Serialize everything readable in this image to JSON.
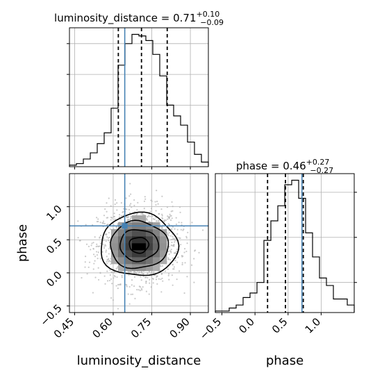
{
  "colors": {
    "truth": "#4682b4",
    "hist": "#000000",
    "grid": "#b0b0b0",
    "density_dark": "#000000",
    "points": "#b8b8b8"
  },
  "chart_data": [
    {
      "type": "histogram",
      "panel": "luminosity_distance",
      "title_param": "luminosity_distance",
      "title_value": "0.71",
      "title_plus": "+0.10",
      "title_minus": "−0.09",
      "xlim": [
        0.43,
        0.97
      ],
      "bin_edges": [
        0.43,
        0.457,
        0.484,
        0.511,
        0.538,
        0.565,
        0.592,
        0.619,
        0.646,
        0.673,
        0.7,
        0.727,
        0.754,
        0.781,
        0.808,
        0.835,
        0.862,
        0.889,
        0.916,
        0.943,
        0.97
      ],
      "counts": [
        1,
        2,
        5,
        9,
        15,
        22,
        38,
        66,
        80,
        86,
        85,
        82,
        73,
        59,
        40,
        33,
        27,
        16,
        8,
        3
      ],
      "quantiles": [
        0.62,
        0.71,
        0.81
      ],
      "truth": 0.645,
      "grid": true
    },
    {
      "type": "histogram",
      "panel": "phase",
      "title_param": "phase",
      "title_value": "0.46",
      "title_plus": "+0.27",
      "title_minus": "−0.27",
      "xlim": [
        -0.6,
        1.5
      ],
      "xticks": [
        -0.5,
        0.0,
        0.5,
        1.0
      ],
      "xtick_labels": [
        "−0.5",
        "0.0",
        "0.5",
        "1.0"
      ],
      "xlabel": "phase",
      "bin_edges": [
        -0.6,
        -0.495,
        -0.39,
        -0.285,
        -0.18,
        -0.075,
        0.03,
        0.135,
        0.24,
        0.345,
        0.45,
        0.555,
        0.66,
        0.765,
        0.87,
        0.975,
        1.08,
        1.185,
        1.29,
        1.395,
        1.5
      ],
      "counts": [
        1,
        1,
        3,
        5,
        10,
        13,
        20,
        48,
        61,
        71,
        85,
        88,
        76,
        53,
        37,
        23,
        18,
        9,
        9,
        5
      ],
      "quantiles": [
        0.19,
        0.46,
        0.73
      ],
      "truth": 0.71,
      "grid": true
    },
    {
      "type": "heatmap",
      "panel": "joint",
      "xlim": [
        0.43,
        0.97
      ],
      "ylim": [
        -0.6,
        1.5
      ],
      "xticks": [
        0.45,
        0.6,
        0.75,
        0.9
      ],
      "xtick_labels": [
        "0.45",
        "0.60",
        "0.75",
        "0.90"
      ],
      "yticks": [
        -0.5,
        0.0,
        0.5,
        1.0
      ],
      "ytick_labels": [
        "−0.5",
        "0.0",
        "0.5",
        "1.0"
      ],
      "xlabel": "luminosity_distance",
      "ylabel": "phase",
      "truth": {
        "x": 0.645,
        "y": 0.71
      },
      "density_peak": {
        "x": 0.7,
        "y": 0.42
      },
      "density_spread": {
        "x": 0.075,
        "y": 0.27
      },
      "contour_levels_sigma": [
        0.5,
        1.0,
        1.5,
        2.0
      ],
      "grid": true
    }
  ]
}
